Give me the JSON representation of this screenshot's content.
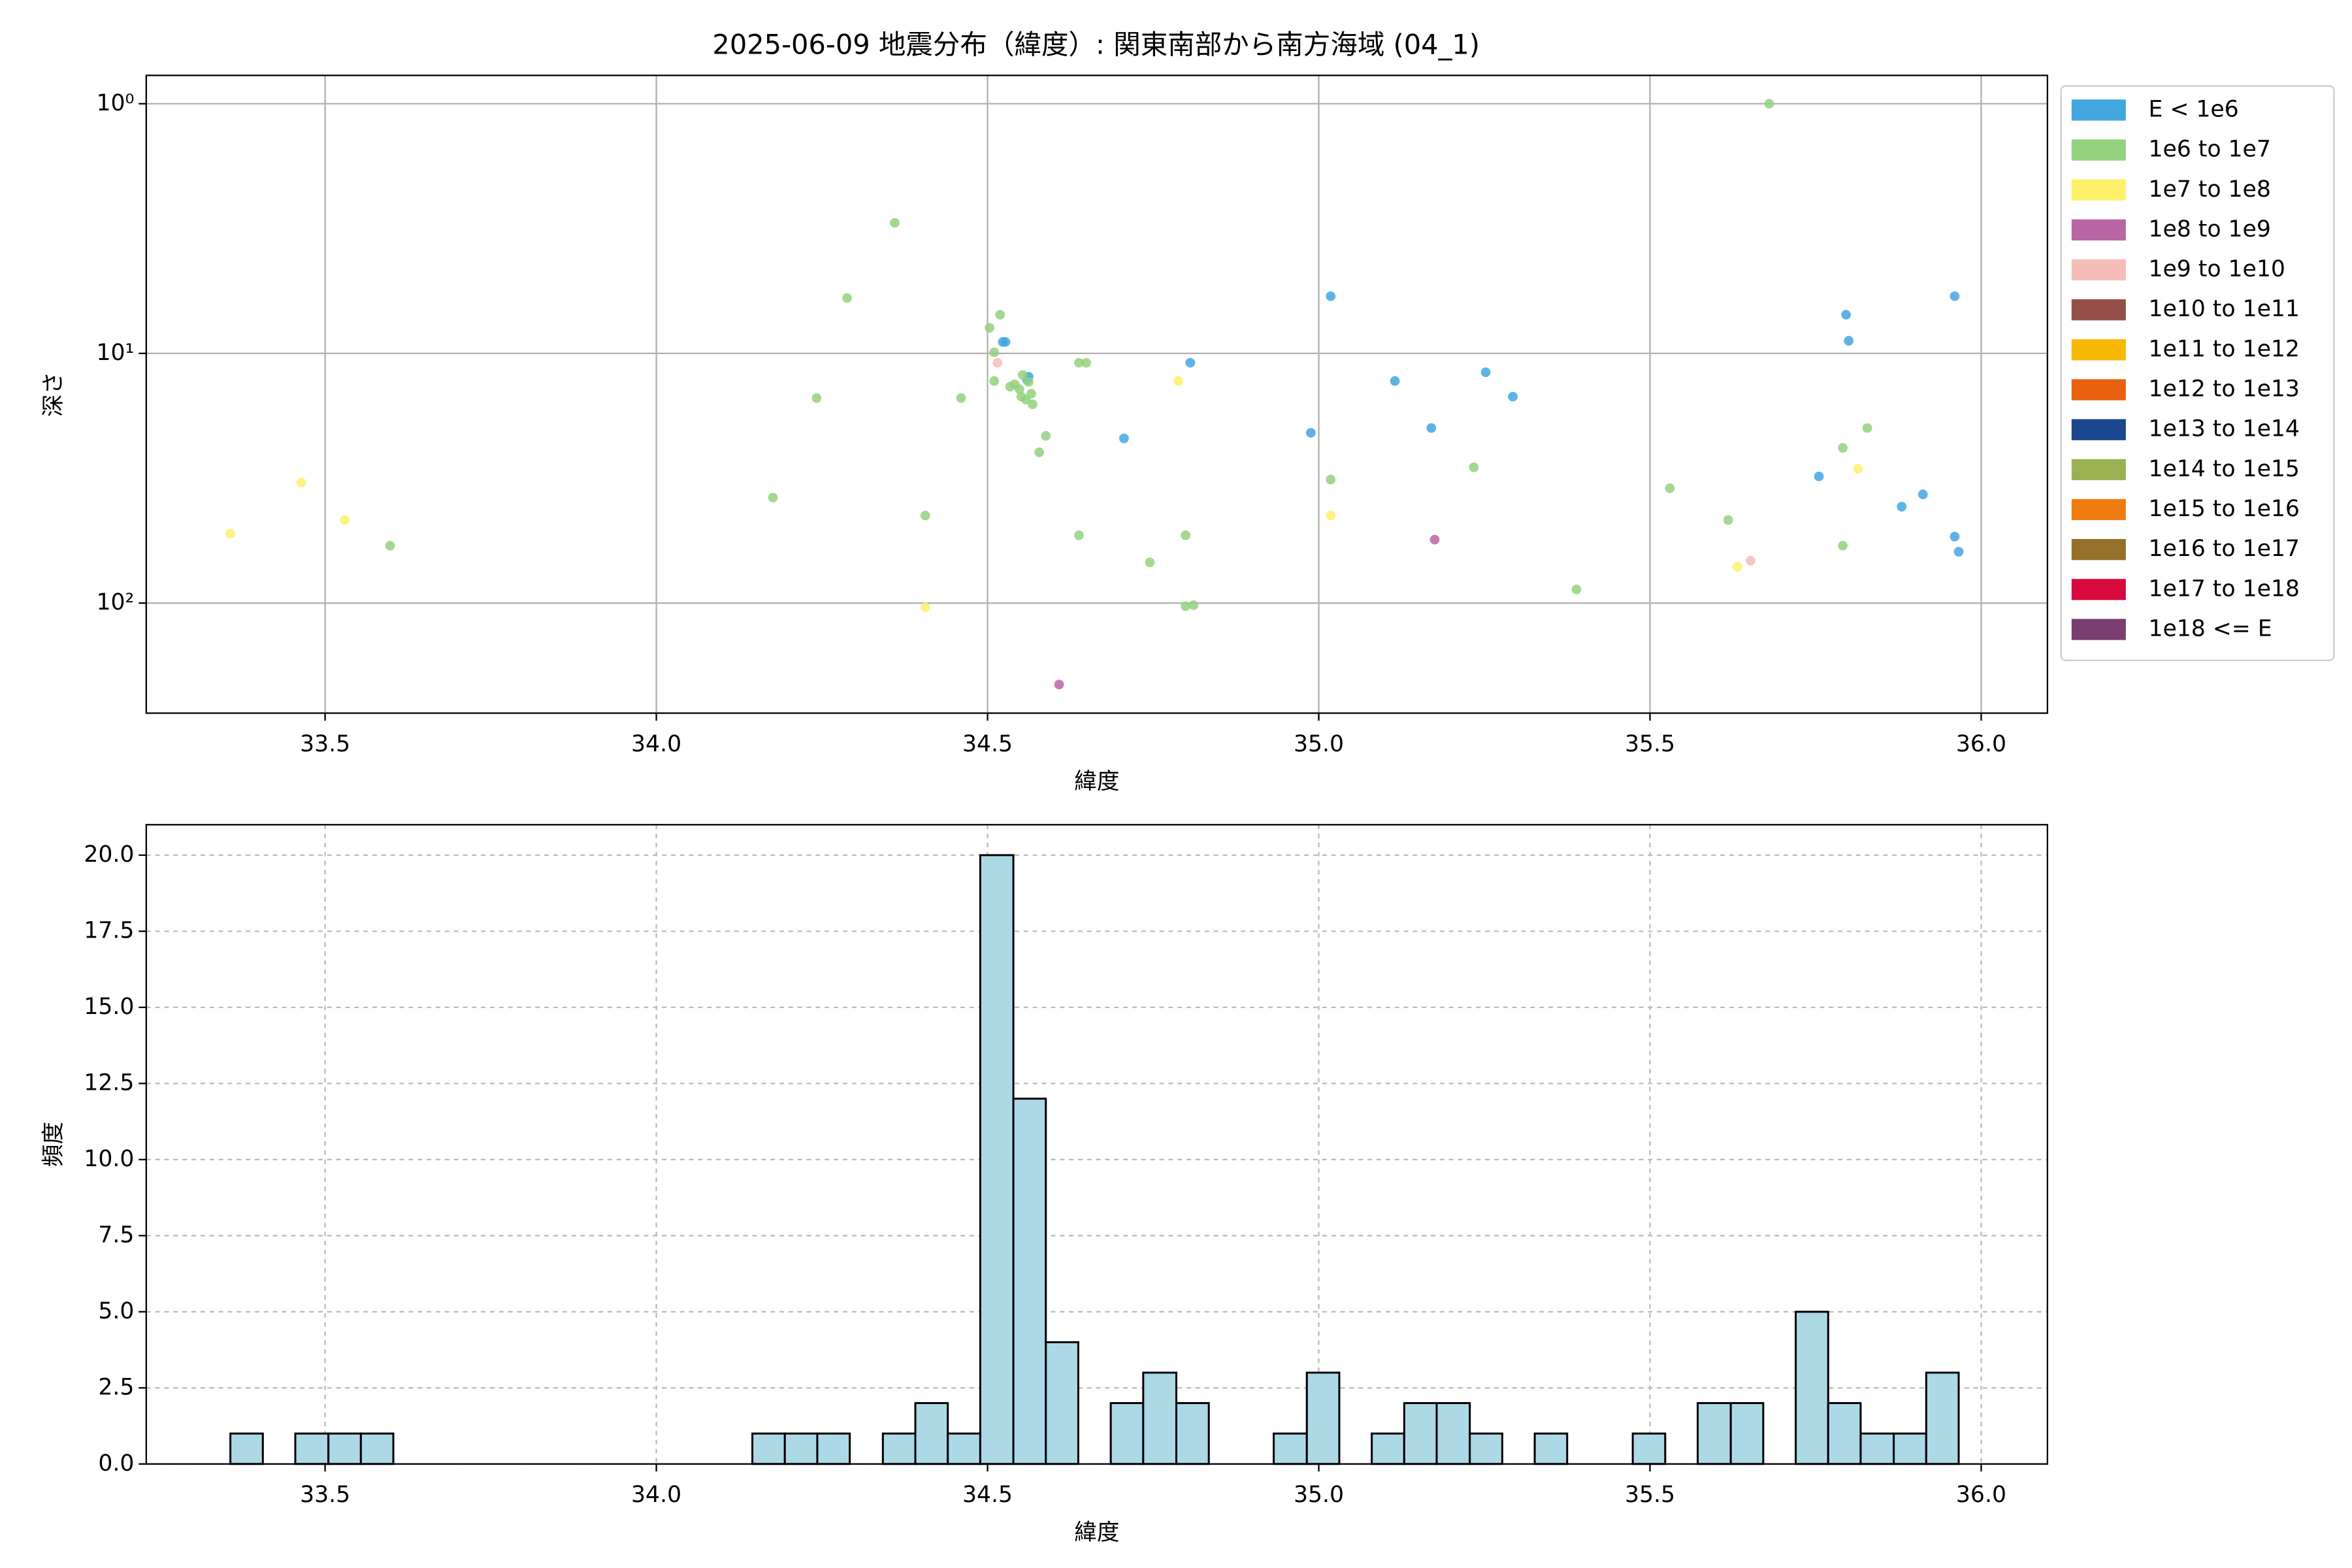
{
  "title": "2025-06-09 地震分布（緯度）: 関東南部から南方海域 (04_1)",
  "chart_data": [
    {
      "type": "scatter",
      "xlabel": "緯度",
      "ylabel": "深さ",
      "yscale": "log",
      "grid": true,
      "legend": "upper right outside",
      "xlim": [
        33.23,
        36.1
      ],
      "xticks": [
        33.5,
        {
          "value": 34,
          "label": "34.0"
        },
        34.5,
        {
          "value": 35,
          "label": "35.0"
        },
        35.5,
        {
          "value": 36,
          "label": "36.0"
        }
      ],
      "ylim": [
        276,
        0.77
      ],
      "yticks": [
        {
          "value": 1,
          "label": "10⁰"
        },
        {
          "value": 10,
          "label": "10¹"
        },
        {
          "value": 100,
          "label": "10²"
        }
      ],
      "series": [
        {
          "name": "E < 1e6",
          "color": "#41a7df",
          "x": [
            34.527,
            34.523,
            34.56,
            34.562,
            34.706,
            34.806,
            34.988,
            35.018,
            35.115,
            35.17,
            35.252,
            35.293,
            35.755,
            35.796,
            35.8,
            35.88,
            35.912,
            35.96,
            35.96,
            35.966
          ],
          "values": [
            9.0,
            9.0,
            12.8,
            12.4,
            21.9,
            10.9,
            20.8,
            5.9,
            12.9,
            19.9,
            11.9,
            14.9,
            31.1,
            7.0,
            8.9,
            41.1,
            36.7,
            5.9,
            54.2,
            62.3
          ]
        },
        {
          "name": "1e6 to 1e7",
          "color": "#94d17e",
          "x": [
            33.598,
            34.176,
            34.242,
            34.288,
            34.36,
            34.406,
            34.46,
            34.503,
            34.519,
            34.51,
            34.51,
            34.541,
            34.548,
            34.553,
            34.558,
            34.562,
            34.566,
            34.568,
            34.551,
            34.534,
            34.578,
            34.588,
            34.638,
            34.649,
            34.638,
            34.745,
            34.799,
            34.799,
            34.811,
            35.018,
            35.234,
            35.389,
            35.53,
            35.618,
            35.68,
            35.791,
            35.828,
            35.791
          ],
          "values": [
            58.9,
            37.8,
            15.1,
            6.0,
            3.0,
            44.6,
            15.1,
            7.9,
            7.0,
            9.9,
            12.9,
            13.3,
            13.9,
            12.2,
            15.3,
            13.0,
            14.5,
            16.0,
            14.9,
            13.6,
            24.9,
            21.4,
            10.9,
            10.9,
            53.5,
            68.7,
            53.5,
            103,
            102,
            32.0,
            28.6,
            88.2,
            34.7,
            46.5,
            1.0,
            23.9,
            19.9,
            58.9
          ]
        },
        {
          "name": "1e7 to 1e8",
          "color": "#fff06a",
          "x": [
            33.357,
            33.464,
            33.53,
            34.406,
            34.788,
            35.018,
            35.632,
            35.814
          ],
          "values": [
            52.7,
            32.9,
            46.5,
            104,
            12.9,
            44.6,
            71.6,
            29.0
          ]
        },
        {
          "name": "1e8 to 1e9",
          "color": "#b866a4",
          "x": [
            35.175,
            34.608
          ],
          "values": [
            55.7,
            212
          ]
        },
        {
          "name": "1e9 to 1e10",
          "color": "#f6bcb8",
          "x": [
            34.515,
            35.652
          ],
          "values": [
            10.9,
            67.7
          ]
        },
        {
          "name": "1e10 to 1e11",
          "color": "#945048",
          "x": [],
          "values": []
        },
        {
          "name": "1e11 to 1e12",
          "color": "#f6b800",
          "x": [],
          "values": []
        },
        {
          "name": "1e12 to 1e13",
          "color": "#e86010",
          "x": [],
          "values": []
        },
        {
          "name": "1e13 to 1e14",
          "color": "#1b4790",
          "x": [],
          "values": []
        },
        {
          "name": "1e14 to 1e15",
          "color": "#9ab152",
          "x": [],
          "values": []
        },
        {
          "name": "1e15 to 1e16",
          "color": "#f07b10",
          "x": [],
          "values": []
        },
        {
          "name": "1e16 to 1e17",
          "color": "#95702a",
          "x": [],
          "values": []
        },
        {
          "name": "1e17 to 1e18",
          "color": "#d80a3c",
          "x": [],
          "values": []
        },
        {
          "name": "1e18 <= E",
          "color": "#7a3e70",
          "x": [],
          "values": []
        }
      ]
    },
    {
      "type": "histogram",
      "xlabel": "緯度",
      "ylabel": "頻度",
      "color": "#add8e6",
      "edgecolor": "#000000",
      "grid": true,
      "xlim": [
        33.23,
        36.1
      ],
      "xticks": [
        33.5,
        {
          "value": 34,
          "label": "34.0"
        },
        34.5,
        {
          "value": 35,
          "label": "35.0"
        },
        35.5,
        {
          "value": 36,
          "label": "36.0"
        }
      ],
      "ylim": [
        0,
        21
      ],
      "yticks": [
        {
          "value": 0,
          "label": "0.0"
        },
        2.5,
        {
          "value": 5,
          "label": "5.0"
        },
        7.5,
        {
          "value": 10,
          "label": "10.0"
        },
        12.5,
        {
          "value": 15,
          "label": "15.0"
        },
        17.5,
        {
          "value": 20,
          "label": "20.0"
        }
      ],
      "bins": [
        33.357,
        33.406,
        33.455,
        33.505,
        33.554,
        33.603,
        33.652,
        33.702,
        33.751,
        33.8,
        33.849,
        33.898,
        33.948,
        33.997,
        34.046,
        34.095,
        34.145,
        34.194,
        34.243,
        34.292,
        34.342,
        34.391,
        34.44,
        34.489,
        34.539,
        34.588,
        34.637,
        34.686,
        34.735,
        34.785,
        34.834,
        34.883,
        34.932,
        34.982,
        35.031,
        35.08,
        35.129,
        35.178,
        35.228,
        35.277,
        35.326,
        35.375,
        35.425,
        35.474,
        35.523,
        35.572,
        35.622,
        35.671,
        35.72,
        35.769,
        35.818,
        35.868,
        35.917,
        35.966
      ],
      "values": [
        1,
        0,
        1,
        1,
        1,
        0,
        0,
        0,
        0,
        0,
        0,
        0,
        0,
        0,
        0,
        0,
        1,
        1,
        1,
        0,
        1,
        2,
        1,
        20,
        12,
        4,
        0,
        2,
        3,
        2,
        0,
        0,
        1,
        3,
        0,
        1,
        2,
        2,
        1,
        0,
        1,
        0,
        0,
        1,
        0,
        2,
        2,
        0,
        5,
        2,
        1,
        1,
        3
      ]
    }
  ]
}
